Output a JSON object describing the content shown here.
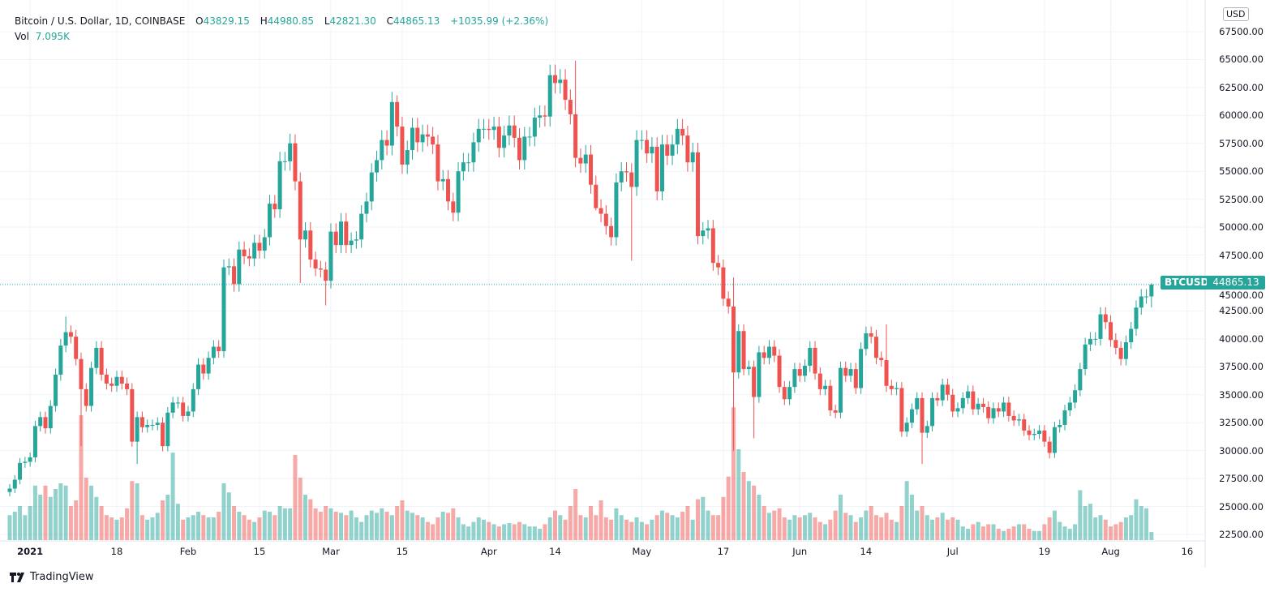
{
  "header": {
    "title": "Bitcoin / U.S. Dollar, 1D, COINBASE",
    "o_label": "O",
    "o_value": "43829.15",
    "h_label": "H",
    "h_value": "44980.85",
    "l_label": "L",
    "l_value": "42821.30",
    "c_label": "C",
    "c_value": "44865.13",
    "change": "+1035.99 (+2.36%)",
    "vol_label": "Vol",
    "vol_value": "7.095K"
  },
  "currency_button": "USD",
  "price_tag": {
    "symbol": "BTCUSD",
    "price": "44865.13"
  },
  "branding": "TradingView",
  "colors": {
    "up": "#26a69a",
    "down": "#ef5350",
    "grid": "#f0f3fa"
  },
  "chart_data": {
    "type": "candlestick",
    "symbol": "BTCUSD",
    "interval": "1D",
    "start_date": "2020-12-28",
    "first_open": 26.3,
    "units": "thousand USD",
    "close": [
      26.6,
      27.4,
      28.9,
      29.0,
      29.4,
      32.2,
      33.0,
      32.0,
      34.0,
      36.8,
      39.4,
      40.6,
      40.2,
      38.2,
      35.5,
      34.0,
      37.4,
      39.2,
      36.8,
      36.0,
      35.8,
      36.6,
      36.0,
      35.5,
      30.8,
      33.0,
      32.1,
      32.3,
      32.3,
      32.5,
      30.4,
      33.4,
      34.3,
      34.3,
      33.1,
      33.5,
      35.5,
      37.7,
      36.9,
      38.3,
      39.3,
      38.9,
      46.4,
      46.5,
      44.9,
      48.0,
      47.4,
      47.2,
      48.6,
      47.9,
      49.1,
      52.1,
      51.6,
      55.9,
      55.9,
      57.5,
      54.1,
      48.9,
      49.7,
      47.1,
      46.3,
      46.2,
      45.2,
      49.6,
      48.4,
      50.5,
      48.4,
      48.8,
      48.9,
      51.2,
      52.3,
      54.9,
      56.0,
      57.8,
      57.3,
      61.2,
      59.0,
      55.6,
      56.9,
      58.9,
      57.6,
      58.3,
      58.1,
      57.4,
      54.1,
      54.3,
      52.3,
      51.3,
      55.0,
      55.8,
      55.8,
      57.6,
      58.8,
      58.8,
      58.7,
      59.0,
      57.1,
      58.2,
      59.1,
      58.0,
      56.0,
      58.1,
      58.1,
      59.8,
      60.0,
      59.9,
      63.6,
      62.9,
      63.2,
      61.4,
      60.1,
      56.2,
      55.7,
      56.5,
      53.8,
      51.7,
      51.2,
      50.1,
      49.1,
      54.0,
      55.0,
      54.9,
      53.6,
      57.8,
      57.8,
      56.6,
      57.2,
      53.2,
      57.4,
      56.4,
      57.4,
      58.8,
      58.2,
      55.8,
      56.7,
      49.2,
      49.7,
      49.9,
      46.8,
      46.4,
      43.6,
      42.9,
      37.0,
      40.7,
      37.3,
      37.5,
      34.8,
      38.8,
      38.3,
      39.3,
      38.5,
      35.7,
      34.6,
      35.7,
      37.3,
      36.7,
      37.6,
      39.2,
      36.9,
      35.5,
      35.8,
      33.6,
      33.4,
      37.4,
      36.7,
      37.3,
      35.6,
      39.1,
      40.5,
      40.2,
      38.3,
      38.1,
      35.8,
      35.5,
      35.6,
      31.7,
      32.5,
      33.7,
      34.7,
      31.6,
      32.2,
      34.7,
      34.5,
      35.9,
      35.0,
      33.5,
      33.8,
      34.7,
      35.3,
      33.7,
      34.2,
      33.9,
      32.9,
      33.8,
      33.5,
      34.3,
      33.1,
      32.7,
      32.8,
      31.8,
      31.4,
      31.5,
      31.8,
      30.8,
      29.8,
      32.1,
      32.3,
      33.6,
      34.3,
      35.4,
      37.3,
      39.5,
      40.0,
      40.0,
      42.2,
      41.5,
      39.9,
      39.2,
      38.2,
      39.7,
      40.9,
      42.8,
      43.8,
      43.8,
      44.865
    ],
    "wick_overrides": {
      "11": {
        "h": 42.0
      },
      "14": {
        "l": 30.4
      },
      "25": {
        "l": 28.8
      },
      "56": {
        "h": 58.3
      },
      "57": {
        "l": 45.0
      },
      "62": {
        "l": 43.0
      },
      "76": {
        "h": 61.8
      },
      "111": {
        "h": 64.9
      },
      "115": {
        "l": 51.5
      },
      "122": {
        "l": 47.0
      },
      "142": {
        "h": 45.5,
        "l": 30.0
      },
      "146": {
        "l": 31.1
      },
      "172": {
        "h": 41.3
      },
      "179": {
        "l": 28.8
      },
      "204": {
        "l": 29.3
      },
      "224": {
        "h": 44.98,
        "l": 42.82
      }
    },
    "volume_k": [
      22,
      25,
      30,
      22,
      30,
      48,
      40,
      48,
      38,
      45,
      50,
      48,
      30,
      35,
      110,
      55,
      48,
      38,
      30,
      22,
      20,
      18,
      20,
      28,
      52,
      50,
      22,
      18,
      20,
      24,
      35,
      40,
      77,
      32,
      18,
      20,
      22,
      25,
      22,
      20,
      20,
      25,
      50,
      42,
      30,
      25,
      22,
      18,
      16,
      20,
      26,
      25,
      22,
      30,
      28,
      28,
      75,
      55,
      40,
      36,
      28,
      25,
      30,
      28,
      25,
      24,
      22,
      26,
      20,
      16,
      22,
      26,
      24,
      28,
      25,
      22,
      30,
      35,
      26,
      24,
      22,
      20,
      16,
      14,
      20,
      25,
      24,
      28,
      20,
      14,
      12,
      16,
      20,
      18,
      16,
      14,
      12,
      14,
      15,
      14,
      16,
      14,
      12,
      12,
      10,
      14,
      20,
      26,
      22,
      18,
      30,
      45,
      22,
      20,
      30,
      22,
      35,
      20,
      18,
      28,
      22,
      18,
      16,
      20,
      16,
      14,
      18,
      22,
      26,
      24,
      22,
      20,
      25,
      30,
      18,
      36,
      38,
      26,
      22,
      22,
      38,
      56,
      117,
      80,
      60,
      52,
      48,
      40,
      30,
      24,
      26,
      28,
      20,
      18,
      22,
      20,
      22,
      24,
      20,
      16,
      14,
      18,
      26,
      40,
      24,
      22,
      16,
      20,
      26,
      30,
      22,
      20,
      24,
      18,
      16,
      30,
      52,
      40,
      26,
      30,
      22,
      18,
      20,
      24,
      18,
      20,
      18,
      12,
      10,
      14,
      16,
      12,
      14,
      14,
      10,
      8,
      10,
      12,
      14,
      14,
      10,
      8,
      8,
      14,
      20,
      26,
      16,
      12,
      10,
      14,
      44,
      30,
      32,
      20,
      22,
      18,
      12,
      14,
      16,
      20,
      22,
      36,
      30,
      28,
      7.095
    ],
    "y_ticks": [
      "67500.00",
      "65000.00",
      "62500.00",
      "60000.00",
      "57500.00",
      "55000.00",
      "52500.00",
      "50000.00",
      "47500.00",
      "45000.00",
      "42500.00",
      "40000.00",
      "37500.00",
      "35000.00",
      "32500.00",
      "30000.00",
      "27500.00",
      "25000.00",
      "22500.00"
    ],
    "x_ticks": [
      {
        "label": "2021",
        "day": 4
      },
      {
        "label": "18",
        "day": 21
      },
      {
        "label": "Feb",
        "day": 35
      },
      {
        "label": "15",
        "day": 49
      },
      {
        "label": "Mar",
        "day": 63
      },
      {
        "label": "15",
        "day": 77
      },
      {
        "label": "Apr",
        "day": 94
      },
      {
        "label": "14",
        "day": 107
      },
      {
        "label": "May",
        "day": 124
      },
      {
        "label": "17",
        "day": 140
      },
      {
        "label": "Jun",
        "day": 155
      },
      {
        "label": "14",
        "day": 168
      },
      {
        "label": "Jul",
        "day": 185
      },
      {
        "label": "19",
        "day": 203
      },
      {
        "label": "Aug",
        "day": 216
      },
      {
        "label": "16",
        "day": 231
      }
    ],
    "ylim": [
      22500,
      67500
    ],
    "last_price": 44865.13
  }
}
